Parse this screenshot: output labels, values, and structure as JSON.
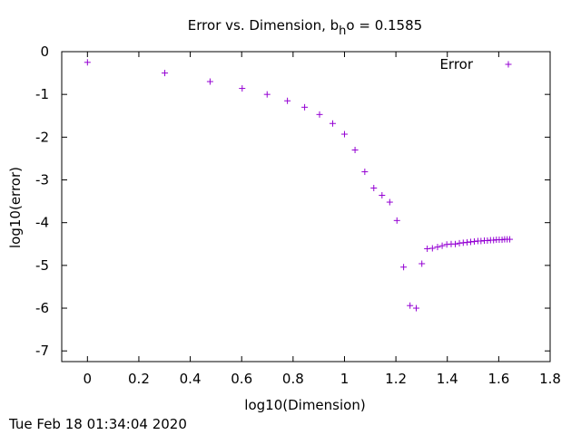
{
  "chart_data": {
    "type": "scatter",
    "title": {
      "prefix": "Error vs. Dimension, b",
      "subscript": "h",
      "suffix": "o = 0.1585"
    },
    "xlabel": "log10(Dimension)",
    "ylabel": "log10(error)",
    "xlim": [
      -0.1,
      1.8
    ],
    "ylim": [
      -7.25,
      0
    ],
    "xticks": [
      0,
      0.2,
      0.4,
      0.6,
      0.8,
      1,
      1.2,
      1.4,
      1.6,
      1.8
    ],
    "xtick_labels": [
      "0",
      "0.2",
      "0.4",
      "0.6",
      "0.8",
      "1",
      "1.2",
      "1.4",
      "1.6",
      "1.8"
    ],
    "yticks": [
      0,
      -1,
      -2,
      -3,
      -4,
      -5,
      -6,
      -7
    ],
    "ytick_labels": [
      "0",
      "-1",
      "-2",
      "-3",
      "-4",
      "-5",
      "-6",
      "-7"
    ],
    "grid": false,
    "legend_position": "top-right",
    "series": [
      {
        "name": "Error",
        "color": "#9400d3",
        "marker": "plus",
        "x": [
          0,
          0.301,
          0.477,
          0.602,
          0.699,
          0.778,
          0.845,
          0.903,
          0.954,
          1.0,
          1.041,
          1.079,
          1.114,
          1.146,
          1.176,
          1.204,
          1.23,
          1.255,
          1.279,
          1.301,
          1.322,
          1.342,
          1.362,
          1.38,
          1.398,
          1.415,
          1.431,
          1.447,
          1.462,
          1.477,
          1.491,
          1.505,
          1.519,
          1.531,
          1.544,
          1.556,
          1.568,
          1.58,
          1.591,
          1.602,
          1.613,
          1.623,
          1.633,
          1.643
        ],
        "y": [
          -0.25,
          -0.5,
          -0.7,
          -0.86,
          -1.0,
          -1.15,
          -1.3,
          -1.47,
          -1.68,
          -1.93,
          -2.3,
          -2.81,
          -3.19,
          -3.36,
          -3.52,
          -3.95,
          -5.04,
          -5.94,
          -6.0,
          -4.96,
          -4.61,
          -4.6,
          -4.57,
          -4.54,
          -4.51,
          -4.5,
          -4.5,
          -4.48,
          -4.47,
          -4.46,
          -4.45,
          -4.44,
          -4.43,
          -4.43,
          -4.42,
          -4.42,
          -4.41,
          -4.41,
          -4.4,
          -4.4,
          -4.4,
          -4.39,
          -4.39,
          -4.39
        ]
      }
    ]
  },
  "footer": {
    "timestamp": "Tue Feb 18 01:34:04 2020"
  }
}
